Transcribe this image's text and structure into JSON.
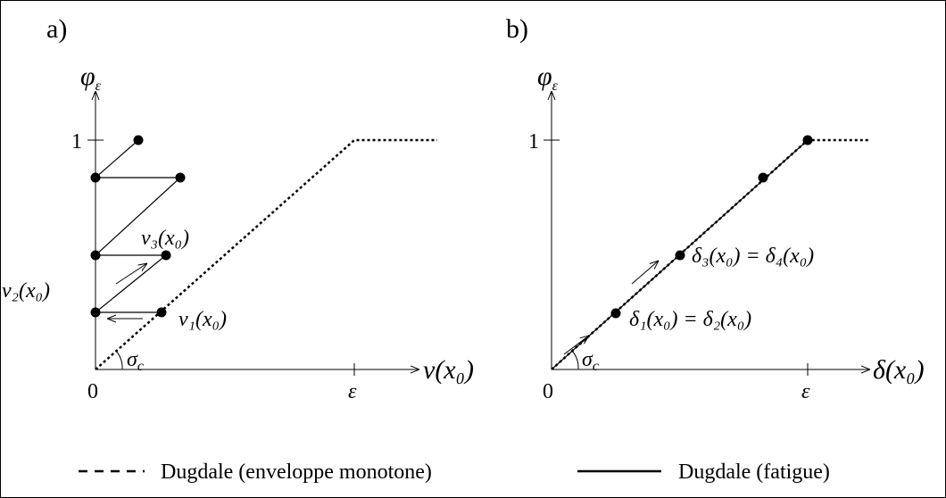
{
  "panels": [
    {
      "label": "a)",
      "y_axis": {
        "symbol": "φ",
        "subscript": "ε"
      },
      "x_axis": "v(x₀)",
      "origin": "0",
      "y_tick": "1",
      "x_tick": "ε",
      "angle": {
        "symbol": "σ",
        "subscript": "c"
      },
      "annotations": [
        "v₃(x₀)",
        "v₂(x₀)",
        "v₁(x₀)"
      ]
    },
    {
      "label": "b)",
      "y_axis": {
        "symbol": "φ",
        "subscript": "ε"
      },
      "x_axis": "δ(x₀)",
      "origin": "0",
      "y_tick": "1",
      "x_tick": "ε",
      "angle": {
        "symbol": "σ",
        "subscript": "c"
      },
      "annotations": [
        "δ₃(x₀) = δ₄(x₀)",
        "δ₁(x₀) = δ₂(x₀)"
      ]
    }
  ],
  "legend": [
    "Dugdale (enveloppe monotone)",
    "Dugdale (fatigue)"
  ]
}
